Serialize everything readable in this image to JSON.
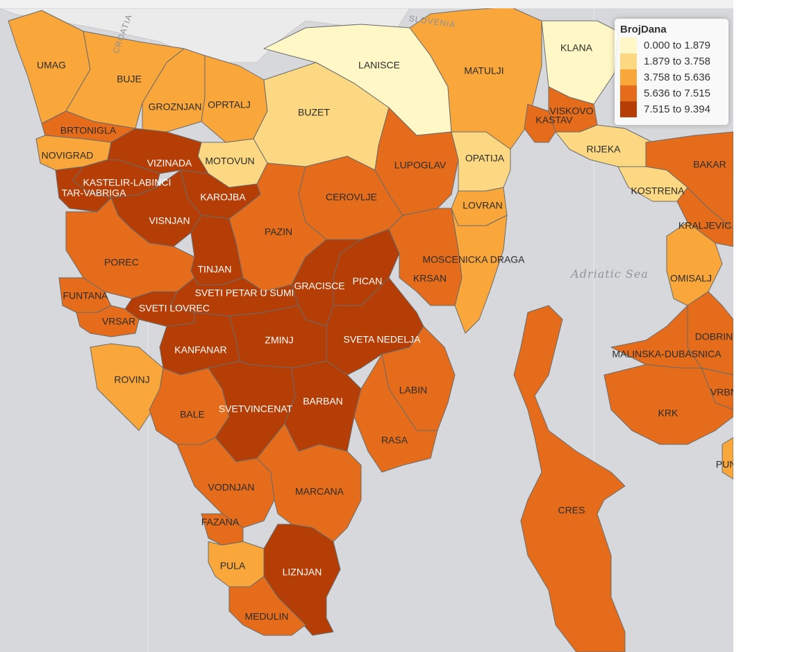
{
  "legend": {
    "title": "BrojDana",
    "items": [
      {
        "label": "0.000 to 1.879",
        "color": "#fff7c6"
      },
      {
        "label": "1.879 to 3.758",
        "color": "#fcd883"
      },
      {
        "label": "3.758 to 5.636",
        "color": "#f9a63a"
      },
      {
        "label": "5.636 to 7.515",
        "color": "#e56c1a"
      },
      {
        "label": "7.515 to 9.394",
        "color": "#b43e05"
      }
    ]
  },
  "sea_label": "Adriatic Sea",
  "country_labels": [
    "SLOVENIA",
    "CROATIA"
  ],
  "municipalities": [
    {
      "name": "UMAG",
      "cls": 2
    },
    {
      "name": "BUJE",
      "cls": 2
    },
    {
      "name": "GROZNJAN",
      "cls": 2
    },
    {
      "name": "OPRTALJ",
      "cls": 2
    },
    {
      "name": "BRTONIGLA",
      "cls": 3
    },
    {
      "name": "NOVIGRAD",
      "cls": 2
    },
    {
      "name": "LANISCE",
      "cls": 0
    },
    {
      "name": "BUZET",
      "cls": 1
    },
    {
      "name": "MOTOVUN",
      "cls": 1
    },
    {
      "name": "MATULJI",
      "cls": 2
    },
    {
      "name": "KLANA",
      "cls": 0
    },
    {
      "name": "VISKOVO",
      "cls": 3
    },
    {
      "name": "KASTAV",
      "cls": 3
    },
    {
      "name": "RIJEKA",
      "cls": 1
    },
    {
      "name": "BAKAR",
      "cls": 3
    },
    {
      "name": "KOSTRENA",
      "cls": 1
    },
    {
      "name": "KRALJEVIC",
      "cls": 3
    },
    {
      "name": "VIZINADA",
      "cls": 4
    },
    {
      "name": "KASTELIR-LABINCI",
      "cls": 4
    },
    {
      "name": "TAR-VABRIGA",
      "cls": 4
    },
    {
      "name": "KAROJBA",
      "cls": 4
    },
    {
      "name": "VISNJAN",
      "cls": 4
    },
    {
      "name": "CEROVLJE",
      "cls": 3
    },
    {
      "name": "LUPOGLAV",
      "cls": 3
    },
    {
      "name": "OPATIJA",
      "cls": 1
    },
    {
      "name": "LOVRAN",
      "cls": 2
    },
    {
      "name": "PAZIN",
      "cls": 3
    },
    {
      "name": "POREC",
      "cls": 3
    },
    {
      "name": "TINJAN",
      "cls": 4
    },
    {
      "name": "SVETI PETAR U SUMI",
      "cls": 4
    },
    {
      "name": "GRACISCE",
      "cls": 4
    },
    {
      "name": "PICAN",
      "cls": 4
    },
    {
      "name": "MOSCENICKA DRAGA",
      "cls": 2
    },
    {
      "name": "KRSAN",
      "cls": 3
    },
    {
      "name": "FUNTANA",
      "cls": 3
    },
    {
      "name": "SVETI LOVREC",
      "cls": 4
    },
    {
      "name": "VRSAR",
      "cls": 3
    },
    {
      "name": "KANFANAR",
      "cls": 4
    },
    {
      "name": "ZMINJ",
      "cls": 4
    },
    {
      "name": "SVETA NEDELJA",
      "cls": 4
    },
    {
      "name": "OMISALJ",
      "cls": 2
    },
    {
      "name": "DOBRIN",
      "cls": 3
    },
    {
      "name": "MALINSKA-DUBASNICA",
      "cls": 3
    },
    {
      "name": "ROVINJ",
      "cls": 2
    },
    {
      "name": "LABIN",
      "cls": 3
    },
    {
      "name": "BALE",
      "cls": 3
    },
    {
      "name": "SVETVINCENAT",
      "cls": 4
    },
    {
      "name": "BARBAN",
      "cls": 4
    },
    {
      "name": "RASA",
      "cls": 3
    },
    {
      "name": "KRK",
      "cls": 3
    },
    {
      "name": "VRBNIK",
      "cls": 3
    },
    {
      "name": "PUNAT",
      "cls": 2
    },
    {
      "name": "VODNJAN",
      "cls": 3
    },
    {
      "name": "MARCANA",
      "cls": 3
    },
    {
      "name": "CRES",
      "cls": 3
    },
    {
      "name": "FAZANA",
      "cls": 3
    },
    {
      "name": "PULA",
      "cls": 2
    },
    {
      "name": "LIZNJAN",
      "cls": 4
    },
    {
      "name": "MEDULIN",
      "cls": 3
    }
  ]
}
